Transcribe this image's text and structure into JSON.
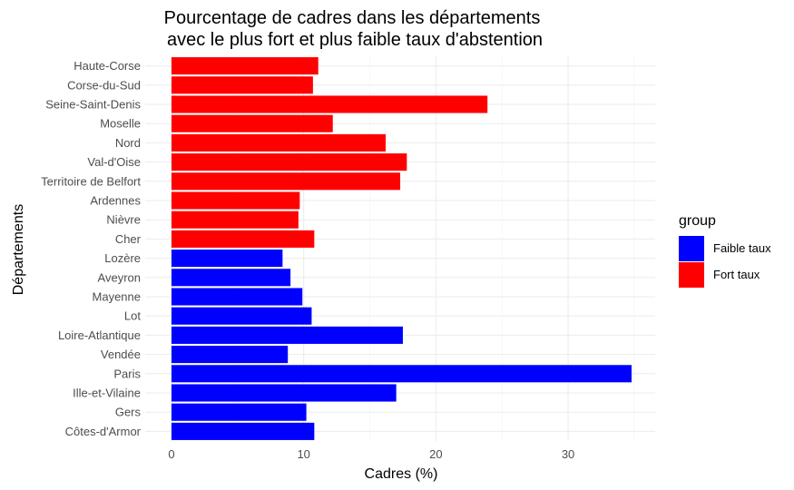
{
  "chart_data": {
    "type": "bar",
    "orientation": "horizontal",
    "title_line1": "Pourcentage de cadres dans les départements",
    "title_line2": "avec le plus fort et plus faible taux d'abstention",
    "xlabel": "Cadres (%)",
    "ylabel": "Départements",
    "xlim": [
      0,
      36
    ],
    "xticks": [
      0,
      10,
      20,
      30
    ],
    "grid": true,
    "legend": {
      "title": "group",
      "placement": "right",
      "entries": [
        {
          "label": "Faible taux",
          "color": "#0000ff"
        },
        {
          "label": "Fort taux",
          "color": "#ff0000"
        }
      ]
    },
    "categories": [
      "Haute-Corse",
      "Corse-du-Sud",
      "Seine-Saint-Denis",
      "Moselle",
      "Nord",
      "Val-d'Oise",
      "Territoire de Belfort",
      "Ardennes",
      "Nièvre",
      "Cher",
      "Lozère",
      "Aveyron",
      "Mayenne",
      "Lot",
      "Loire-Atlantique",
      "Vendée",
      "Paris",
      "Ille-et-Vilaine",
      "Gers",
      "Côtes-d'Armor"
    ],
    "values": [
      11.1,
      10.7,
      23.9,
      12.2,
      16.2,
      17.8,
      17.3,
      9.7,
      9.6,
      10.8,
      8.4,
      9.0,
      9.9,
      10.6,
      17.5,
      8.8,
      34.8,
      17.0,
      10.2,
      10.8
    ],
    "groups": [
      "Fort taux",
      "Fort taux",
      "Fort taux",
      "Fort taux",
      "Fort taux",
      "Fort taux",
      "Fort taux",
      "Fort taux",
      "Fort taux",
      "Fort taux",
      "Faible taux",
      "Faible taux",
      "Faible taux",
      "Faible taux",
      "Faible taux",
      "Faible taux",
      "Faible taux",
      "Faible taux",
      "Faible taux",
      "Faible taux"
    ]
  }
}
